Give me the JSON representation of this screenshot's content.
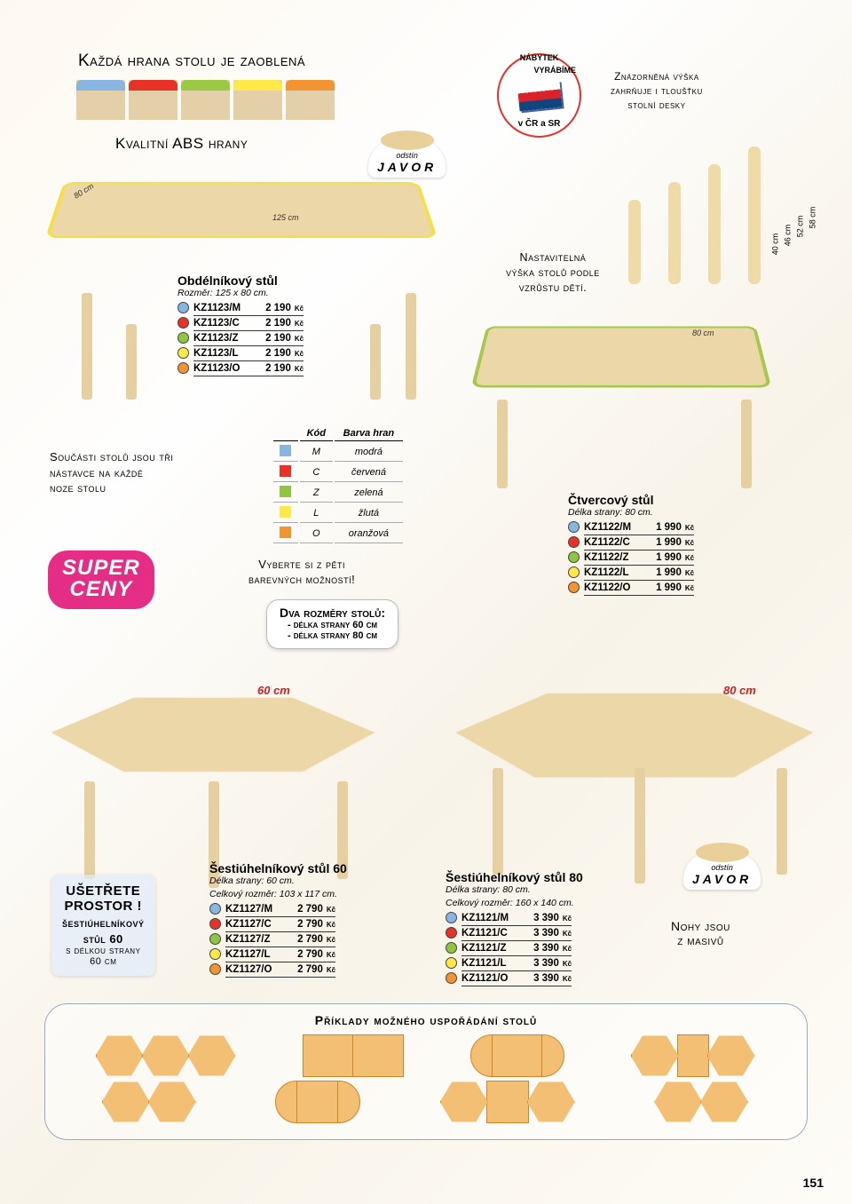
{
  "page_number": "151",
  "colors": {
    "M": "#87b6e0",
    "C": "#e63229",
    "Z": "#8fc540",
    "L": "#ffe94a",
    "O": "#f29432",
    "javor": "#ecd7a8",
    "edge_yellow": "#f4e046",
    "edge_green": "#a7c84e",
    "edge_red": "#e64030",
    "super_pink": "#e62d86"
  },
  "header": {
    "rounded_edges": "Každá hrana stolu je zaoblená",
    "abs_edges": "Kvalitní ABS hrany",
    "height_note_1": "Znázorněná výška",
    "height_note_2": "zahrňuje i tloušťku",
    "height_note_3": "stolní desky"
  },
  "seal": {
    "top": "NÁBYTEK",
    "right": "VYRÁBÍME",
    "bottom": "v ČR a SR"
  },
  "javor": {
    "label_small": "odstín",
    "label_big": "JAVOR"
  },
  "leg_heights": [
    "40 cm",
    "46 cm",
    "52 cm",
    "58 cm"
  ],
  "adjustable": {
    "l1": "Nastavitelná",
    "l2": "výška stolů podle",
    "l3": "vzrůstu dětí."
  },
  "rect_table": {
    "title": "Obdélníkový stůl",
    "subtitle": "Rozměr: 125 x 80 cm.",
    "dim_w": "125 cm",
    "dim_d": "80 cm",
    "rows": [
      {
        "c": "M",
        "code": "KZ1123/M",
        "price": "2 190"
      },
      {
        "c": "C",
        "code": "KZ1123/C",
        "price": "2 190"
      },
      {
        "c": "Z",
        "code": "KZ1123/Z",
        "price": "2 190"
      },
      {
        "c": "L",
        "code": "KZ1123/L",
        "price": "2 190"
      },
      {
        "c": "O",
        "code": "KZ1123/O",
        "price": "2 190"
      }
    ]
  },
  "square_table": {
    "title": "Čtvercový stůl",
    "subtitle": "Délka strany: 80 cm.",
    "dim": "80 cm",
    "rows": [
      {
        "c": "M",
        "code": "KZ1122/M",
        "price": "1 990"
      },
      {
        "c": "C",
        "code": "KZ1122/C",
        "price": "1 990"
      },
      {
        "c": "Z",
        "code": "KZ1122/Z",
        "price": "1 990"
      },
      {
        "c": "L",
        "code": "KZ1122/L",
        "price": "1 990"
      },
      {
        "c": "O",
        "code": "KZ1122/O",
        "price": "1 990"
      }
    ]
  },
  "hex60": {
    "title": "Šestiúhelníkový stůl 60",
    "sub1": "Délka strany: 60 cm.",
    "sub2": "Celkový rozměr: 103 x 117 cm.",
    "dim": "60 cm",
    "rows": [
      {
        "c": "M",
        "code": "KZ1127/M",
        "price": "2 790"
      },
      {
        "c": "C",
        "code": "KZ1127/C",
        "price": "2 790"
      },
      {
        "c": "Z",
        "code": "KZ1127/Z",
        "price": "2 790"
      },
      {
        "c": "L",
        "code": "KZ1127/L",
        "price": "2 790"
      },
      {
        "c": "O",
        "code": "KZ1127/O",
        "price": "2 790"
      }
    ]
  },
  "hex80": {
    "title": "Šestiúhelníkový stůl 80",
    "sub1": "Délka strany: 80 cm.",
    "sub2": "Celkový rozměr: 160 x 140 cm.",
    "dim": "80 cm",
    "rows": [
      {
        "c": "M",
        "code": "KZ1121/M",
        "price": "3 390"
      },
      {
        "c": "C",
        "code": "KZ1121/C",
        "price": "3 390"
      },
      {
        "c": "Z",
        "code": "KZ1121/Z",
        "price": "3 390"
      },
      {
        "c": "L",
        "code": "KZ1121/L",
        "price": "3 390"
      },
      {
        "c": "O",
        "code": "KZ1121/O",
        "price": "3 390"
      }
    ]
  },
  "parts": {
    "l1": "Součásti stolů jsou tři",
    "l2": "nástavce na každé",
    "l3": "noze stolu"
  },
  "color_legend": {
    "head_code": "Kód",
    "head_color": "Barva hran",
    "rows": [
      {
        "c": "M",
        "k": "M",
        "n": "modrá"
      },
      {
        "c": "C",
        "k": "C",
        "n": "červená"
      },
      {
        "c": "Z",
        "k": "Z",
        "n": "zelená"
      },
      {
        "c": "L",
        "k": "L",
        "n": "žlutá"
      },
      {
        "c": "O",
        "k": "O",
        "n": "oranžová"
      }
    ]
  },
  "choose": {
    "l1": "Vyberte si z pěti",
    "l2": "barevných možností!"
  },
  "super": {
    "l1": "SUPER",
    "l2": "CENY"
  },
  "two_sizes": {
    "title": "Dva rozměry stolů:",
    "s1": "- délka strany 60 cm",
    "s2": "- délka strany 80 cm"
  },
  "save": {
    "h1": "UŠETŘETE",
    "h2": "PROSTOR !",
    "t1": "šestiúhelníkový",
    "t2": "stůl 60",
    "t3": "s délkou strany",
    "t4": "60 cm"
  },
  "legs_note": {
    "l1": "Nohy jsou",
    "l2": "z masivů"
  },
  "arrangements_title": "Příklady možného uspořádání stolů",
  "currency": "Kč"
}
